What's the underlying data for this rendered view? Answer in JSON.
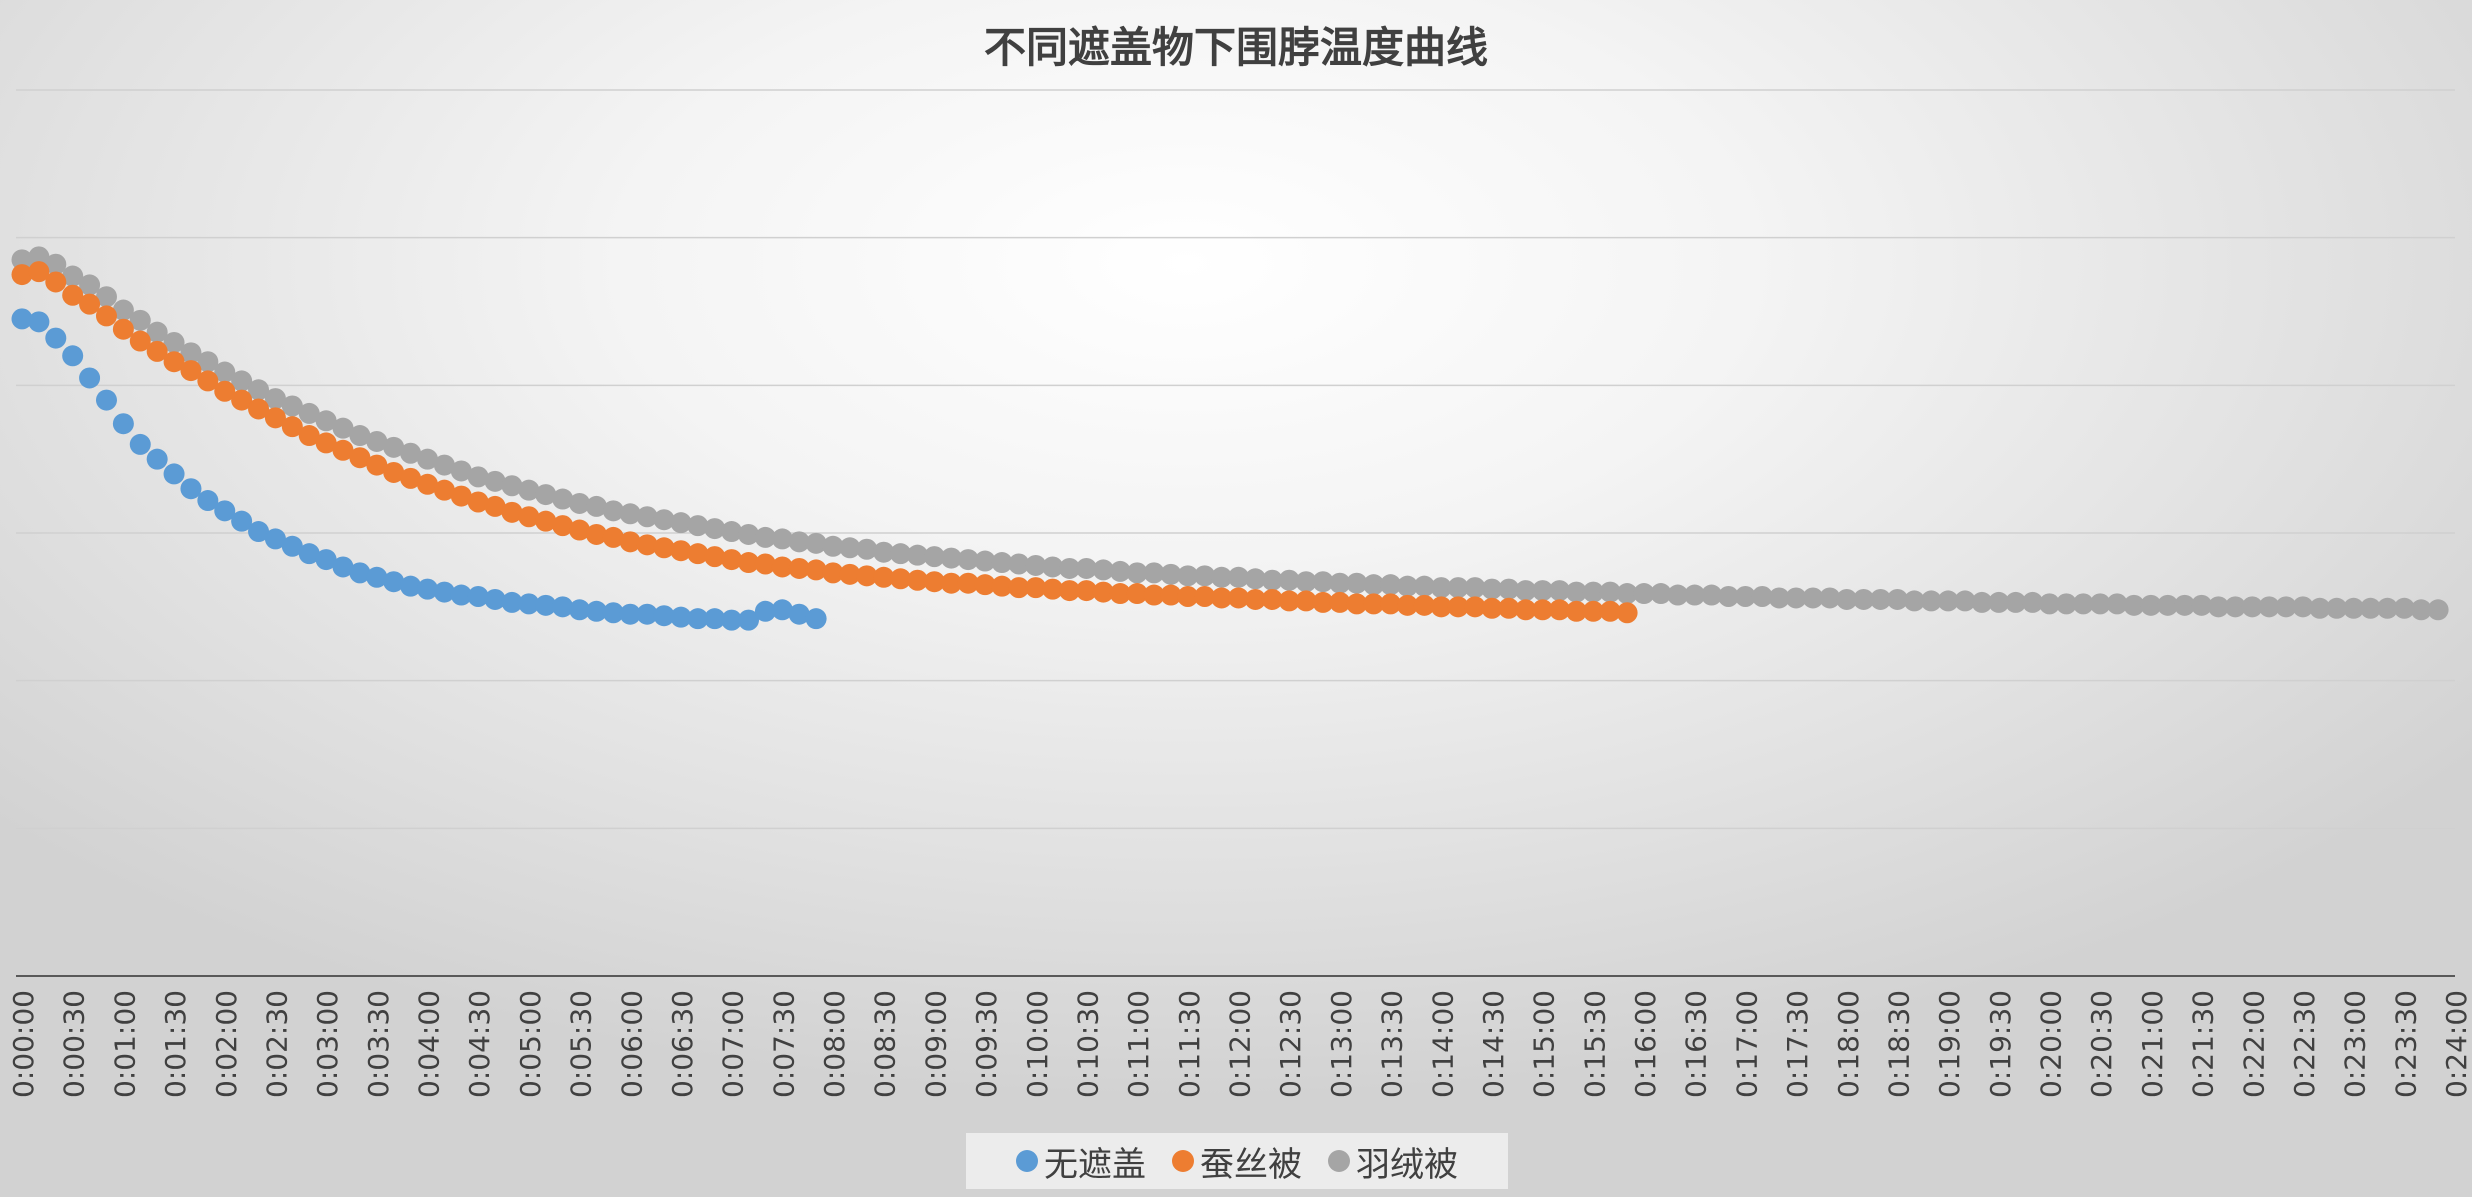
{
  "chart_data": {
    "type": "scatter",
    "title": "不同遮盖物下围脖温度曲线",
    "xlabel": "",
    "ylabel": "",
    "x_tick_labels": [
      "0:00:00",
      "0:00:30",
      "0:01:00",
      "0:01:30",
      "0:02:00",
      "0:02:30",
      "0:03:00",
      "0:03:30",
      "0:04:00",
      "0:04:30",
      "0:05:00",
      "0:05:30",
      "0:06:00",
      "0:06:30",
      "0:07:00",
      "0:07:30",
      "0:08:00",
      "0:08:30",
      "0:09:00",
      "0:09:30",
      "0:10:00",
      "0:10:30",
      "0:11:00",
      "0:11:30",
      "0:12:00",
      "0:12:30",
      "0:13:00",
      "0:13:30",
      "0:14:00",
      "0:14:30",
      "0:15:00",
      "0:15:30",
      "0:16:00",
      "0:16:30",
      "0:17:00",
      "0:17:30",
      "0:18:00",
      "0:18:30",
      "0:19:00",
      "0:19:30",
      "0:20:00",
      "0:20:30",
      "0:21:00",
      "0:21:30",
      "0:22:00",
      "0:22:30",
      "0:23:00",
      "0:23:30",
      "0:24:00"
    ],
    "sample_interval_seconds": 10,
    "ylim": [
      0,
      6
    ],
    "grid": true,
    "legend_position": "bottom",
    "series": [
      {
        "name": "无遮盖",
        "color": "#5b9bd5",
        "values": [
          4.45,
          4.43,
          4.32,
          4.2,
          4.05,
          3.9,
          3.74,
          3.6,
          3.5,
          3.4,
          3.3,
          3.22,
          3.15,
          3.08,
          3.01,
          2.96,
          2.91,
          2.86,
          2.82,
          2.77,
          2.73,
          2.7,
          2.67,
          2.64,
          2.62,
          2.6,
          2.58,
          2.57,
          2.55,
          2.53,
          2.52,
          2.51,
          2.5,
          2.48,
          2.47,
          2.46,
          2.45,
          2.45,
          2.44,
          2.43,
          2.42,
          2.42,
          2.41,
          2.41,
          2.47,
          2.48,
          2.45,
          2.42
        ]
      },
      {
        "name": "蚕丝被",
        "color": "#ed7d31",
        "values": [
          4.75,
          4.77,
          4.7,
          4.61,
          4.55,
          4.47,
          4.38,
          4.3,
          4.23,
          4.16,
          4.1,
          4.03,
          3.96,
          3.9,
          3.84,
          3.78,
          3.72,
          3.66,
          3.61,
          3.56,
          3.51,
          3.46,
          3.41,
          3.37,
          3.33,
          3.29,
          3.25,
          3.21,
          3.18,
          3.14,
          3.11,
          3.08,
          3.05,
          3.02,
          2.99,
          2.97,
          2.94,
          2.92,
          2.9,
          2.88,
          2.86,
          2.84,
          2.82,
          2.8,
          2.79,
          2.77,
          2.76,
          2.75,
          2.73,
          2.72,
          2.71,
          2.7,
          2.69,
          2.68,
          2.67,
          2.66,
          2.66,
          2.65,
          2.64,
          2.63,
          2.63,
          2.62,
          2.61,
          2.61,
          2.6,
          2.59,
          2.59,
          2.58,
          2.58,
          2.57,
          2.57,
          2.56,
          2.56,
          2.55,
          2.55,
          2.54,
          2.54,
          2.53,
          2.53,
          2.52,
          2.52,
          2.52,
          2.51,
          2.51,
          2.5,
          2.5,
          2.5,
          2.49,
          2.49,
          2.48,
          2.48,
          2.48,
          2.47,
          2.47,
          2.47,
          2.46
        ]
      },
      {
        "name": "羽绒被",
        "color": "#a5a5a5",
        "values": [
          4.85,
          4.87,
          4.82,
          4.74,
          4.68,
          4.6,
          4.51,
          4.44,
          4.36,
          4.29,
          4.22,
          4.16,
          4.09,
          4.03,
          3.97,
          3.91,
          3.86,
          3.81,
          3.76,
          3.71,
          3.66,
          3.62,
          3.58,
          3.54,
          3.5,
          3.46,
          3.42,
          3.38,
          3.35,
          3.32,
          3.29,
          3.26,
          3.23,
          3.2,
          3.18,
          3.15,
          3.13,
          3.11,
          3.09,
          3.07,
          3.05,
          3.03,
          3.01,
          2.99,
          2.97,
          2.96,
          2.94,
          2.93,
          2.91,
          2.9,
          2.89,
          2.87,
          2.86,
          2.85,
          2.84,
          2.83,
          2.82,
          2.81,
          2.8,
          2.79,
          2.78,
          2.77,
          2.76,
          2.76,
          2.75,
          2.74,
          2.73,
          2.73,
          2.72,
          2.71,
          2.71,
          2.7,
          2.7,
          2.69,
          2.68,
          2.68,
          2.67,
          2.67,
          2.66,
          2.66,
          2.65,
          2.65,
          2.64,
          2.64,
          2.63,
          2.63,
          2.63,
          2.62,
          2.62,
          2.61,
          2.61,
          2.61,
          2.6,
          2.6,
          2.6,
          2.59,
          2.59,
          2.59,
          2.58,
          2.58,
          2.58,
          2.57,
          2.57,
          2.57,
          2.56,
          2.56,
          2.56,
          2.56,
          2.55,
          2.55,
          2.55,
          2.55,
          2.54,
          2.54,
          2.54,
          2.54,
          2.53,
          2.53,
          2.53,
          2.53,
          2.52,
          2.52,
          2.52,
          2.52,
          2.52,
          2.51,
          2.51,
          2.51,
          2.51,
          2.51,
          2.5,
          2.5,
          2.5,
          2.5,
          2.5,
          2.5,
          2.49,
          2.49,
          2.49,
          2.49,
          2.49,
          2.49,
          2.48,
          2.48
        ]
      }
    ]
  }
}
